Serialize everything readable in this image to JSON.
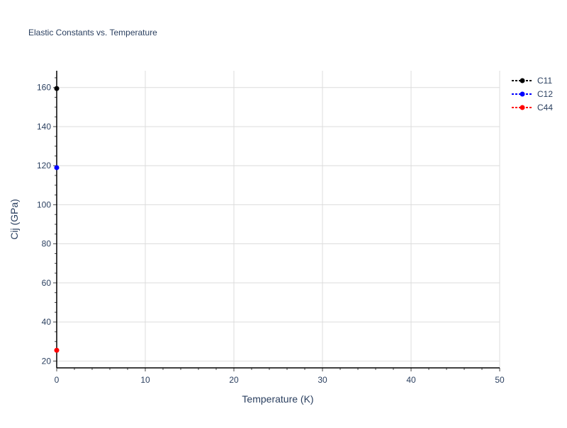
{
  "chart_data": {
    "type": "line",
    "title": "Elastic Constants vs. Temperature",
    "xlabel": "Temperature (K)",
    "ylabel": "Cij (GPa)",
    "xlim": [
      0,
      50
    ],
    "ylim": [
      16.5,
      168.6
    ],
    "xticks": [
      0,
      10,
      20,
      30,
      40,
      50
    ],
    "yticks": [
      20,
      40,
      60,
      80,
      100,
      120,
      140,
      160
    ],
    "grid": true,
    "legend_placement": "top-right",
    "series": [
      {
        "name": "C11",
        "color": "#000000",
        "x": [
          0
        ],
        "y": [
          159.5
        ]
      },
      {
        "name": "C12",
        "color": "#0000ff",
        "x": [
          0
        ],
        "y": [
          119
        ]
      },
      {
        "name": "C44",
        "color": "#ff0000",
        "x": [
          0
        ],
        "y": [
          25.5
        ]
      }
    ]
  }
}
